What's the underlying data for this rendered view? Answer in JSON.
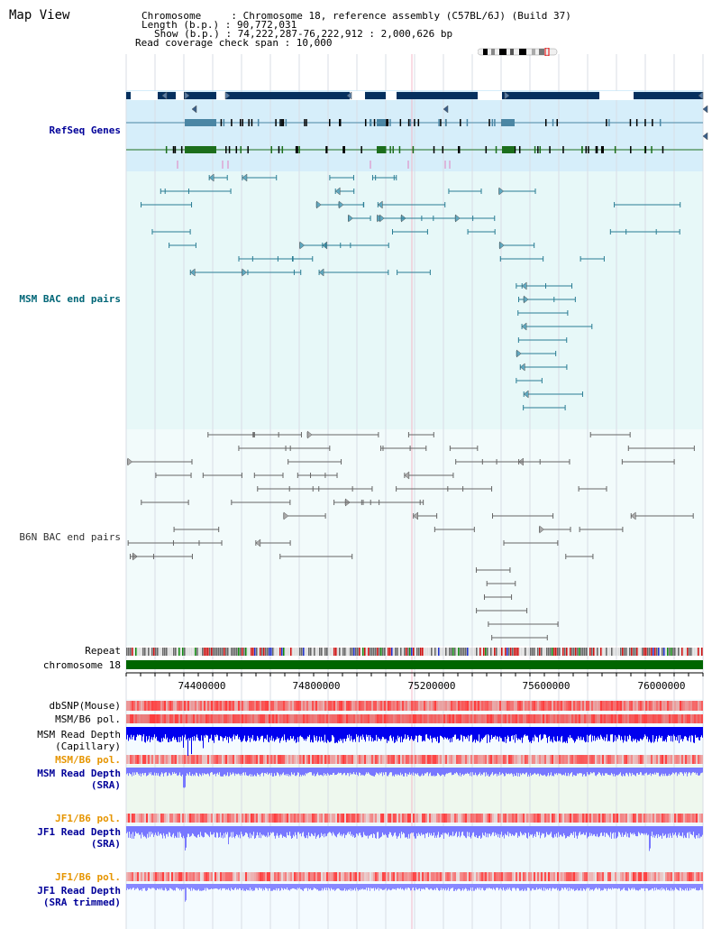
{
  "view_title": "Map View",
  "header": {
    "chromosome_key": "Chromosome",
    "chromosome_val": ": Chromosome 18, reference assembly (C57BL/6J) (Build 37)",
    "length_key": "Length (b.p.)",
    "length_val": ": 90,772,031",
    "show_key": "Show (b.p.)",
    "show_val": ": 74,222,287-76,222,912 : 2,000,626 bp",
    "coverage_line": "Read coverage check span : 10,000"
  },
  "tracks": {
    "refseq": "RefSeq Genes",
    "msm_bac": "MSM BAC end pairs",
    "b6n_bac": "B6N BAC end pairs",
    "repeat": "Repeat",
    "chromosome": "chromosome 18",
    "dbsnp": "dbSNP(Mouse)",
    "msm_b6_pol_1": "MSM/B6 pol.",
    "msm_depth_cap_1": "MSM Read Depth",
    "msm_depth_cap_2": "(Capillary)",
    "msm_b6_pol_2": "MSM/B6 pol.",
    "msm_depth_sra_1": "MSM Read Depth",
    "msm_depth_sra_2": "(SRA)",
    "jf1_b6_pol_1": "JF1/B6 pol.",
    "jf1_depth_sra_1": "JF1 Read Depth",
    "jf1_depth_sra_2": "(SRA)",
    "jf1_b6_pol_2": "JF1/B6 pol.",
    "jf1_depth_trim_1": "JF1 Read Depth",
    "jf1_depth_trim_2": "(SRA trimmed)"
  },
  "axis_ticks": [
    "74400000",
    "74800000",
    "75200000",
    "75600000",
    "76000000"
  ],
  "colors": {
    "refseq_label": "#000099",
    "msm_bac_label": "#006677",
    "b6n_label": "#333333",
    "pol_label": "#e69500",
    "depth_label": "#000099",
    "chromosome_bar": "#006600",
    "depth_fill": "#0000ee",
    "sra_fill": "#7777ff"
  }
}
